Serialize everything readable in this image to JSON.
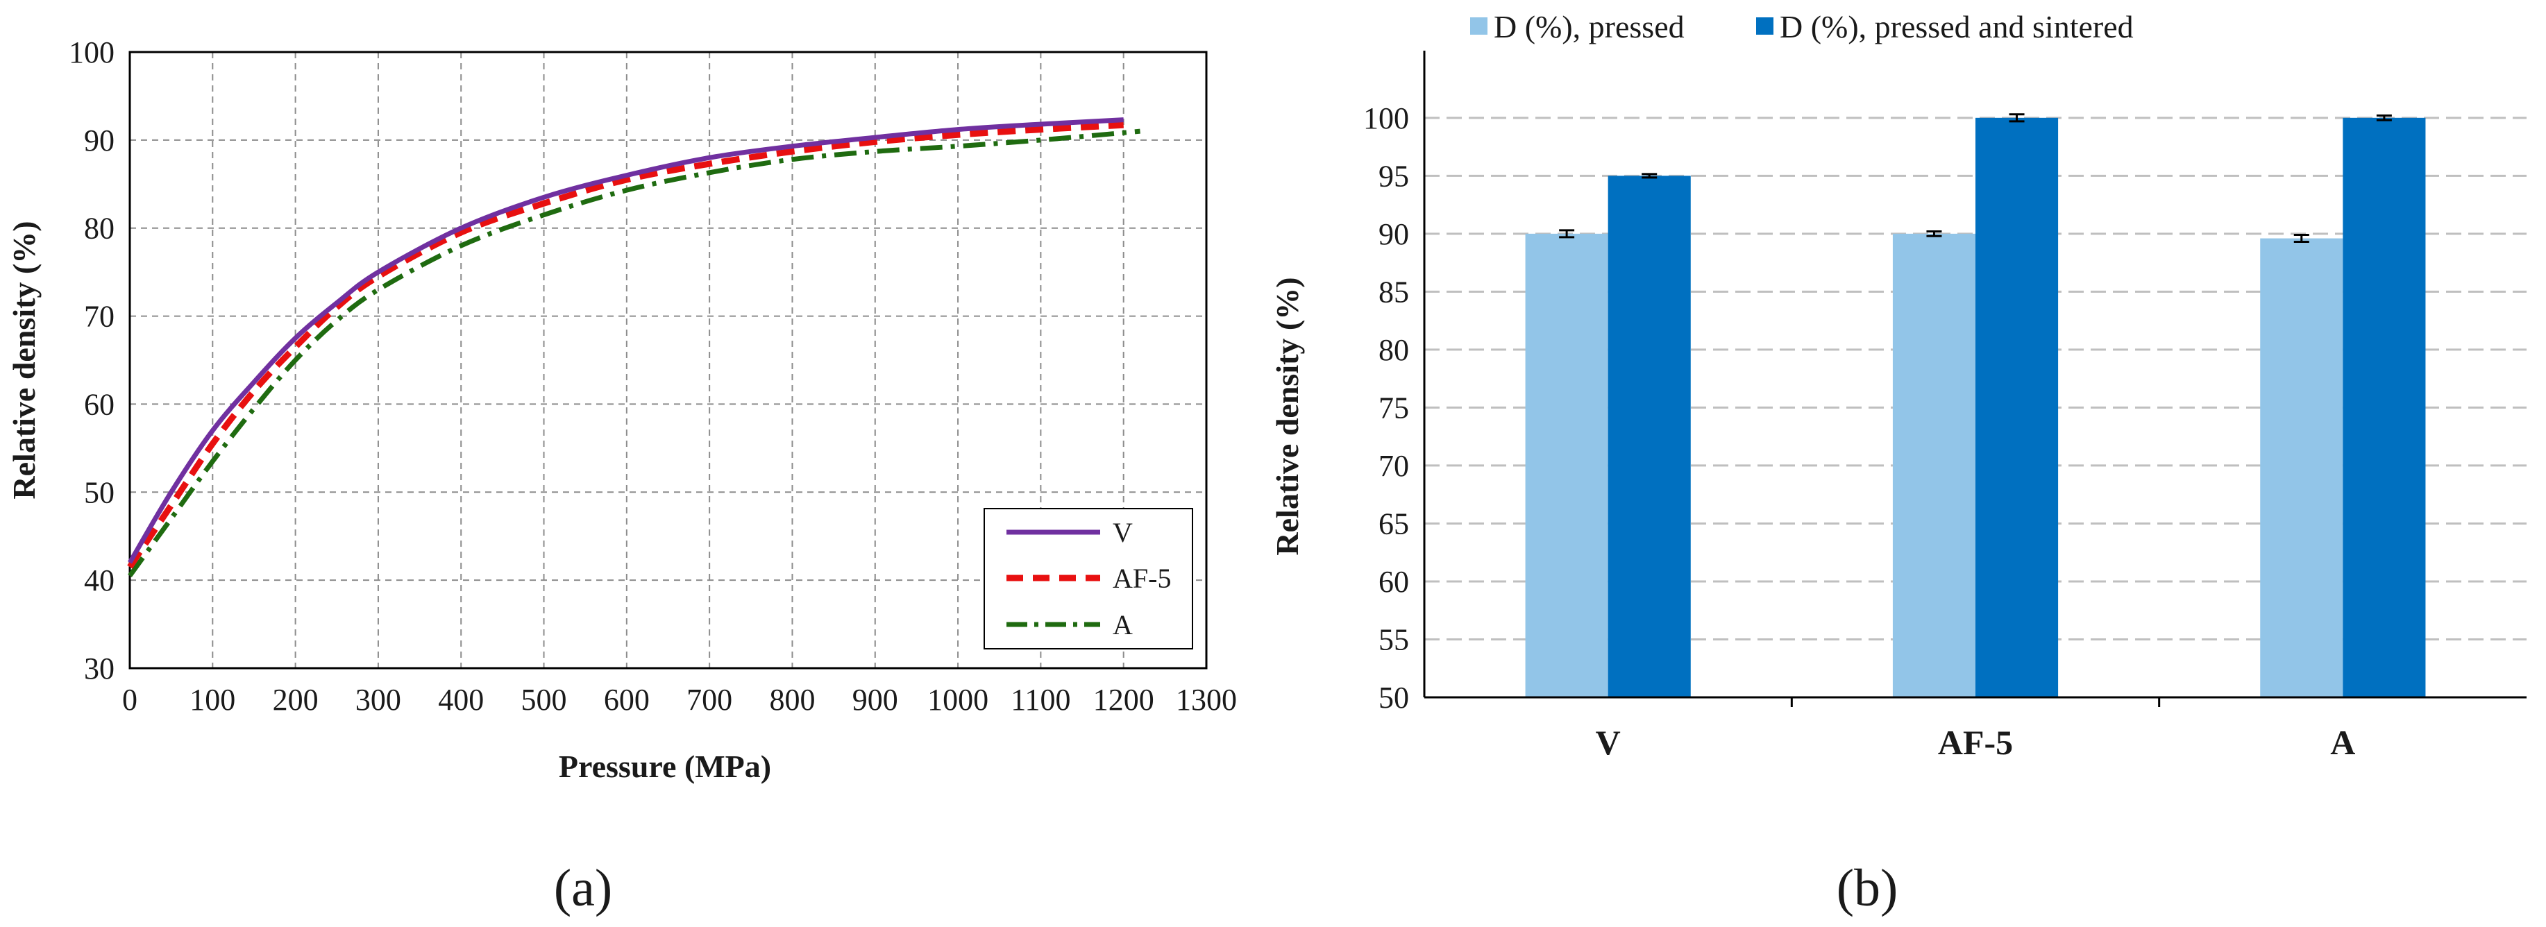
{
  "chart_data": [
    {
      "type": "line",
      "panel_label": "(a)",
      "title": "",
      "xlabel": "Pressure (MPa)",
      "ylabel": "Relative density (%)",
      "xlim": [
        0,
        1300
      ],
      "ylim": [
        30,
        100
      ],
      "x_ticks": [
        "0",
        "100",
        "200",
        "300",
        "400",
        "500",
        "600",
        "700",
        "800",
        "900",
        "1000",
        "1100",
        "1200",
        "1300"
      ],
      "y_ticks": [
        "30",
        "40",
        "50",
        "60",
        "70",
        "80",
        "90",
        "100"
      ],
      "grid": true,
      "legend_position": "bottom-right",
      "series": [
        {
          "name": "V",
          "color": "#7030a0",
          "style": "solid",
          "x": [
            0,
            50,
            100,
            150,
            200,
            250,
            300,
            400,
            500,
            600,
            700,
            800,
            900,
            1000,
            1100,
            1200
          ],
          "y": [
            42,
            50,
            57,
            62.5,
            67.5,
            71.5,
            75,
            80,
            83.5,
            86,
            88,
            89.3,
            90.3,
            91.2,
            91.8,
            92.3
          ]
        },
        {
          "name": "AF-5",
          "color": "#e81010",
          "style": "dashed",
          "x": [
            0,
            50,
            100,
            150,
            200,
            250,
            300,
            400,
            500,
            600,
            700,
            800,
            900,
            1000,
            1100,
            1200
          ],
          "y": [
            41.5,
            48.5,
            55.5,
            61.5,
            66.5,
            71,
            74.5,
            79.5,
            82.8,
            85.5,
            87.3,
            88.7,
            89.8,
            90.6,
            91.2,
            91.7
          ]
        },
        {
          "name": "A",
          "color": "#1f6b10",
          "style": "dashdot",
          "x": [
            0,
            50,
            100,
            150,
            200,
            250,
            300,
            400,
            500,
            600,
            700,
            800,
            900,
            1000,
            1100,
            1220
          ],
          "y": [
            40.5,
            47,
            53.5,
            59.5,
            65,
            69.5,
            73,
            78,
            81.5,
            84.3,
            86.3,
            87.8,
            88.7,
            89.3,
            90,
            91
          ]
        }
      ]
    },
    {
      "type": "bar",
      "panel_label": "(b)",
      "title": "",
      "xlabel": "",
      "ylabel": "Relative density (%)",
      "ylim": [
        50,
        104
      ],
      "y_ticks": [
        "50",
        "55",
        "60",
        "65",
        "70",
        "75",
        "80",
        "85",
        "90",
        "95",
        "100"
      ],
      "grid": true,
      "legend_position": "top",
      "categories": [
        "V",
        "AF-5",
        "A"
      ],
      "series": [
        {
          "name": "D (%), pressed",
          "color": "#92c5e8",
          "values": [
            90.0,
            90.0,
            89.6
          ],
          "errors": [
            0.3,
            0.2,
            0.3
          ]
        },
        {
          "name": "D (%), pressed and sintered",
          "color": "#0070c0",
          "values": [
            95.0,
            100.0,
            100.0
          ],
          "errors": [
            0.15,
            0.3,
            0.2
          ]
        }
      ]
    }
  ]
}
